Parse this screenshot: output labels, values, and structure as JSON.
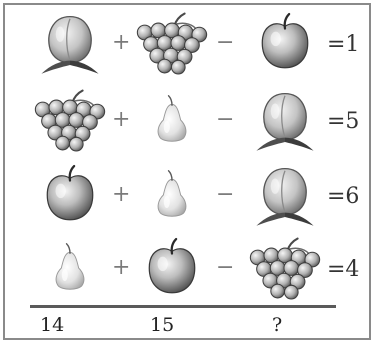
{
  "rows": [
    {
      "terms": [
        "peach",
        "grapes",
        "apple"
      ],
      "operators": [
        "+",
        "−"
      ],
      "result": "=1"
    },
    {
      "terms": [
        "grapes",
        "pear",
        "peach"
      ],
      "operators": [
        "+",
        "−"
      ],
      "result": "=5"
    },
    {
      "terms": [
        "apple",
        "pear",
        "peach"
      ],
      "operators": [
        "+",
        "−"
      ],
      "result": "=6"
    },
    {
      "terms": [
        "pear",
        "apple",
        "grapes"
      ],
      "operators": [
        "+",
        "−"
      ],
      "result": "=4"
    }
  ],
  "column_totals": [
    "14",
    "15",
    "?"
  ],
  "icons": {
    "peach": "peach-icon",
    "grapes": "grapes-icon",
    "apple": "apple-icon",
    "pear": "pear-icon"
  }
}
